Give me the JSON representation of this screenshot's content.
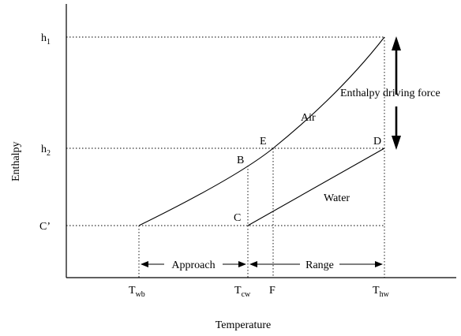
{
  "labels": {
    "y_axis": "Enthalpy",
    "x_axis": "Temperature",
    "h1": {
      "main": "h",
      "sub": "1"
    },
    "h2": {
      "main": "h",
      "sub": "2"
    },
    "c_prime": "C’",
    "point_a_air": "Air",
    "point_b": "B",
    "point_c": "C",
    "point_d": "D",
    "point_e": "E",
    "water": "Water",
    "driving_force": "Enthalpy driving force",
    "approach": "Approach",
    "range": "Range",
    "t_wb": {
      "main": "T",
      "sub": "wb"
    },
    "t_cw": {
      "main": "T",
      "sub": "cw"
    },
    "f": "F",
    "t_hw": {
      "main": "T",
      "sub": "hw"
    }
  }
}
